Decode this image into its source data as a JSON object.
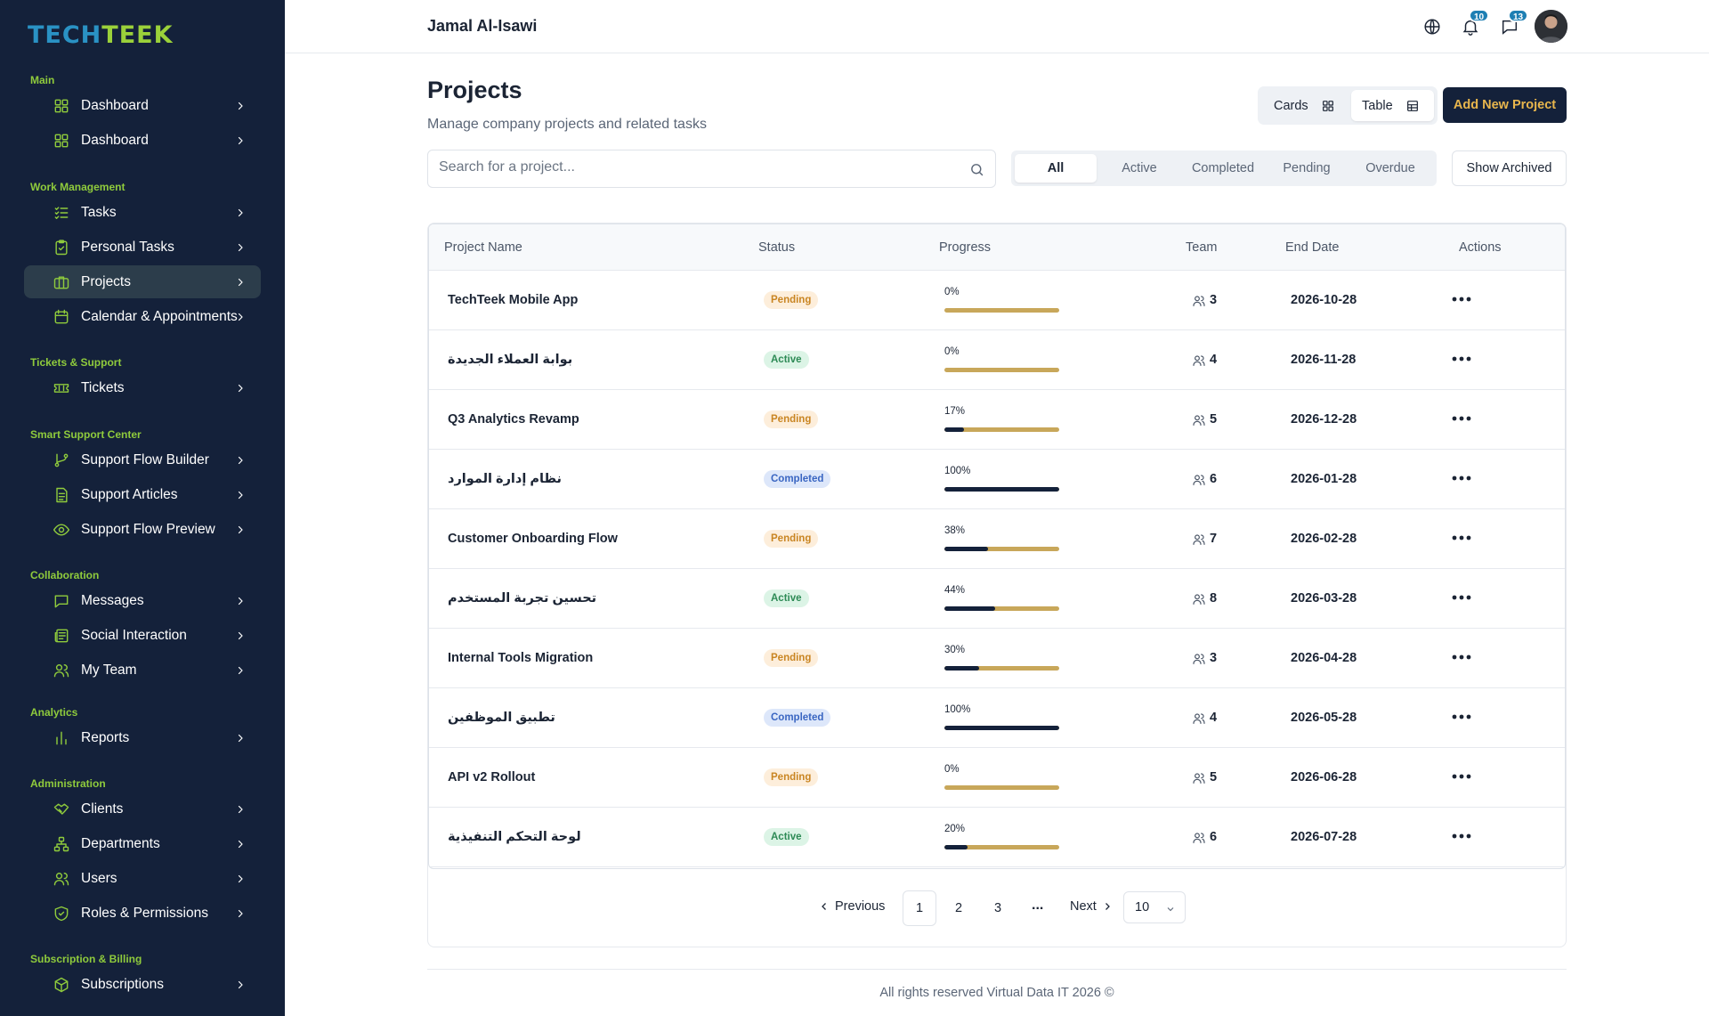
{
  "brand": {
    "part1": "TECH",
    "part2": "TEEK"
  },
  "sidebar": {
    "sections": [
      {
        "label": "Main",
        "items": [
          {
            "label": "Dashboard",
            "icon": "grid-icon"
          },
          {
            "label": "Dashboard",
            "icon": "grid-icon"
          }
        ]
      },
      {
        "label": "Work Management",
        "items": [
          {
            "label": "Tasks",
            "icon": "checklist-icon"
          },
          {
            "label": "Personal Tasks",
            "icon": "clipboard-check-icon"
          },
          {
            "label": "Projects",
            "icon": "briefcase-icon",
            "active": true
          },
          {
            "label": "Calendar & Appointments",
            "icon": "calendar-icon"
          }
        ]
      },
      {
        "label": "Tickets & Support",
        "items": [
          {
            "label": "Tickets",
            "icon": "ticket-icon"
          }
        ]
      },
      {
        "label": "Smart Support Center",
        "items": [
          {
            "label": "Support Flow Builder",
            "icon": "git-branch-icon"
          },
          {
            "label": "Support Articles",
            "icon": "document-icon"
          },
          {
            "label": "Support Flow Preview",
            "icon": "eye-icon"
          }
        ]
      },
      {
        "label": "Collaboration",
        "items": [
          {
            "label": "Messages",
            "icon": "message-square-icon"
          },
          {
            "label": "Social Interaction",
            "icon": "newspaper-icon"
          },
          {
            "label": "My Team",
            "icon": "users-icon"
          }
        ]
      },
      {
        "label": "Analytics",
        "items": [
          {
            "label": "Reports",
            "icon": "bar-chart-icon"
          }
        ]
      },
      {
        "label": "Administration",
        "items": [
          {
            "label": "Clients",
            "icon": "handshake-icon"
          },
          {
            "label": "Departments",
            "icon": "org-chart-icon"
          },
          {
            "label": "Users",
            "icon": "users-icon"
          },
          {
            "label": "Roles & Permissions",
            "icon": "shield-check-icon"
          }
        ]
      },
      {
        "label": "Subscription & Billing",
        "items": [
          {
            "label": "Subscriptions",
            "icon": "package-icon"
          }
        ]
      }
    ]
  },
  "header": {
    "user_name": "Jamal Al-Isawi",
    "notifications_count": "10",
    "messages_count": "13"
  },
  "page": {
    "title": "Projects",
    "subtitle": "Manage company projects and related tasks",
    "view_toggle": {
      "cards": "Cards",
      "table": "Table",
      "selected": "Table"
    },
    "add_button": "Add New Project",
    "search_placeholder": "Search for a project...",
    "filters": [
      "All",
      "Active",
      "Completed",
      "Pending",
      "Overdue"
    ],
    "selected_filter": "All",
    "show_archived": "Show Archived"
  },
  "table": {
    "columns": [
      "Project Name",
      "Status",
      "Progress",
      "Team",
      "End Date",
      "Actions"
    ],
    "rows": [
      {
        "name": "TechTeek Mobile App",
        "status": "Pending",
        "progress": 0,
        "progress_label": "0%",
        "team": "3",
        "end_date": "2026-10-28"
      },
      {
        "name": "بوابة العملاء الجديدة",
        "status": "Active",
        "progress": 0,
        "progress_label": "0%",
        "team": "4",
        "end_date": "2026-11-28"
      },
      {
        "name": "Q3 Analytics Revamp",
        "status": "Pending",
        "progress": 17,
        "progress_label": "17%",
        "team": "5",
        "end_date": "2026-12-28"
      },
      {
        "name": "نظام إدارة الموارد",
        "status": "Completed",
        "progress": 100,
        "progress_label": "100%",
        "team": "6",
        "end_date": "2026-01-28"
      },
      {
        "name": "Customer Onboarding Flow",
        "status": "Pending",
        "progress": 38,
        "progress_label": "38%",
        "team": "7",
        "end_date": "2026-02-28"
      },
      {
        "name": "تحسين تجربة المستخدم",
        "status": "Active",
        "progress": 44,
        "progress_label": "44%",
        "team": "8",
        "end_date": "2026-03-28"
      },
      {
        "name": "Internal Tools Migration",
        "status": "Pending",
        "progress": 30,
        "progress_label": "30%",
        "team": "3",
        "end_date": "2026-04-28"
      },
      {
        "name": "تطبيق الموظفين",
        "status": "Completed",
        "progress": 100,
        "progress_label": "100%",
        "team": "4",
        "end_date": "2026-05-28"
      },
      {
        "name": "API v2 Rollout",
        "status": "Pending",
        "progress": 0,
        "progress_label": "0%",
        "team": "5",
        "end_date": "2026-06-28"
      },
      {
        "name": "لوحة التحكم التنفيذية",
        "status": "Active",
        "progress": 20,
        "progress_label": "20%",
        "team": "6",
        "end_date": "2026-07-28"
      }
    ]
  },
  "pagination": {
    "previous": "Previous",
    "next": "Next",
    "pages": [
      "1",
      "2",
      "3"
    ],
    "current": "1",
    "ellipsis": "...",
    "page_size": "10"
  },
  "footer": {
    "text": "All rights reserved Virtual Data IT 2026 ©"
  },
  "colors": {
    "sidebar_bg": "#14213a",
    "accent_green": "#8fcb3c",
    "accent_gold": "#e8b64d",
    "progress_track": "#c8a75a",
    "badge_blue": "#1e7fb3"
  }
}
